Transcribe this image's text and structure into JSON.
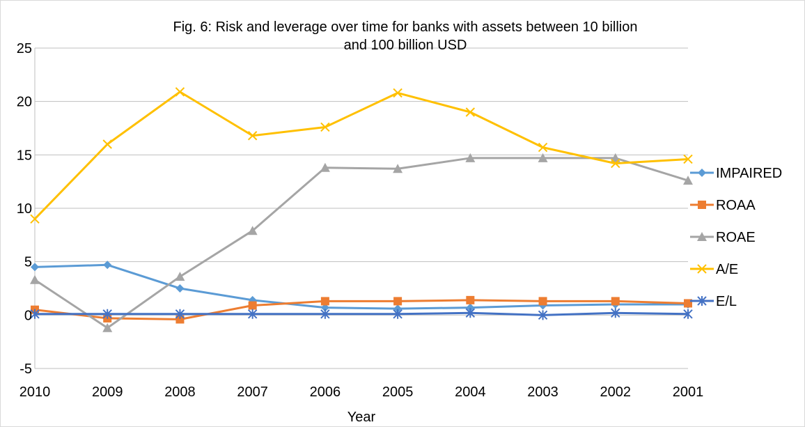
{
  "chart_data": {
    "type": "line",
    "title_lines": [
      "Fig. 6: Risk and leverage over time for banks with assets between 10 billion",
      "and 100 billion USD"
    ],
    "xlabel": "Year",
    "ylabel": "",
    "categories": [
      "2010",
      "2009",
      "2008",
      "2007",
      "2006",
      "2005",
      "2004",
      "2003",
      "2002",
      "2001"
    ],
    "ylim": [
      -5,
      25
    ],
    "yticks": [
      -5,
      0,
      5,
      10,
      15,
      20,
      25
    ],
    "grid": true,
    "legend_position": "right",
    "series": [
      {
        "name": "IMPAIRED",
        "color": "#5b9bd5",
        "marker": "diamond",
        "values": [
          4.5,
          4.7,
          2.5,
          1.4,
          0.7,
          0.6,
          0.7,
          0.9,
          1.0,
          1.0
        ]
      },
      {
        "name": "ROAA",
        "color": "#ed7d31",
        "marker": "square",
        "values": [
          0.5,
          -0.3,
          -0.4,
          0.9,
          1.3,
          1.3,
          1.4,
          1.3,
          1.3,
          1.1
        ]
      },
      {
        "name": "ROAE",
        "color": "#a5a5a5",
        "marker": "triangle",
        "values": [
          3.3,
          -1.2,
          3.6,
          7.9,
          13.8,
          13.7,
          14.7,
          14.7,
          14.7,
          12.6
        ]
      },
      {
        "name": "A/E",
        "color": "#ffc000",
        "marker": "x",
        "values": [
          9.0,
          16.0,
          20.9,
          16.8,
          17.6,
          20.8,
          19.0,
          15.7,
          14.2,
          14.6
        ]
      },
      {
        "name": "E/L",
        "color": "#4472c4",
        "marker": "star",
        "values": [
          0.1,
          0.1,
          0.1,
          0.1,
          0.1,
          0.1,
          0.2,
          0.0,
          0.2,
          0.1
        ]
      }
    ]
  }
}
